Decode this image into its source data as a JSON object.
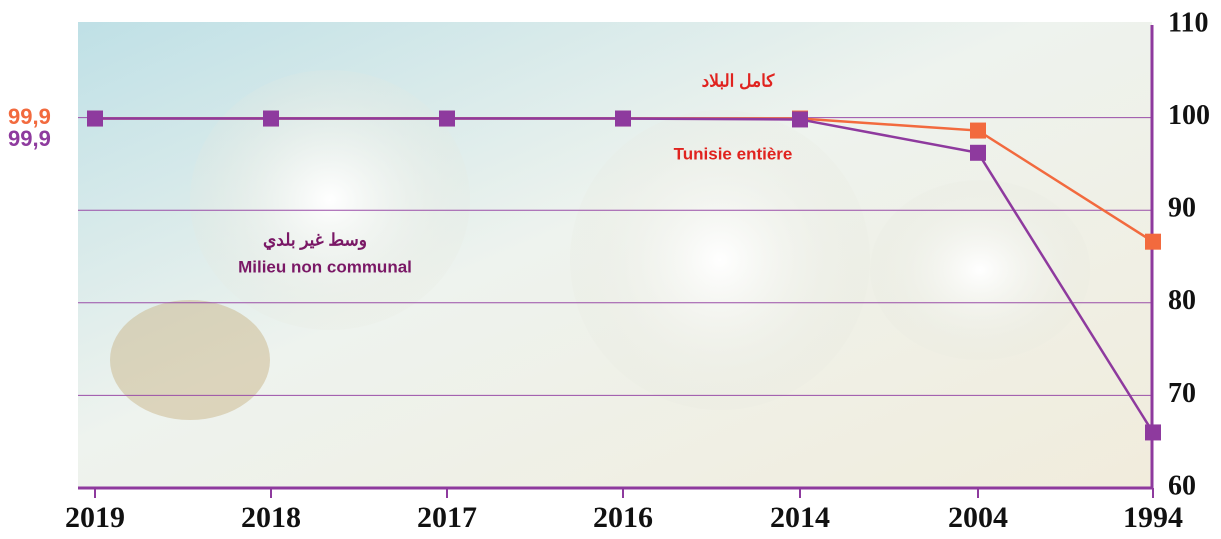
{
  "chart_data": {
    "type": "line",
    "categories": [
      "2019",
      "2018",
      "2017",
      "2016",
      "2014",
      "2004",
      "1994"
    ],
    "series": [
      {
        "name": "Tunisie entière",
        "color": "#f26a3e",
        "values": [
          99.9,
          99.9,
          99.9,
          99.9,
          99.9,
          98.6,
          86.6
        ],
        "value_labels": [
          "99,9",
          null,
          null,
          null,
          null,
          null,
          null
        ]
      },
      {
        "name": "Milieu non communal",
        "color": "#8e3a9e",
        "values": [
          99.9,
          99.9,
          99.9,
          99.9,
          99.8,
          96.2,
          66.0
        ],
        "value_labels": [
          "99,9",
          null,
          null,
          null,
          null,
          null,
          null
        ]
      }
    ],
    "annotations": [
      {
        "text": "كامل البلاد",
        "color": "#e0231f"
      },
      {
        "text": "Tunisie entière",
        "color": "#e0231f"
      },
      {
        "text": "وسط غير بلدي",
        "color": "#7a1866"
      },
      {
        "text": "Milieu non communal",
        "color": "#7a1866"
      }
    ],
    "ylim": [
      60,
      110
    ],
    "yticks": [
      60,
      70,
      80,
      90,
      100,
      110
    ],
    "grid": true,
    "grid_color": "#9a4ea8"
  }
}
